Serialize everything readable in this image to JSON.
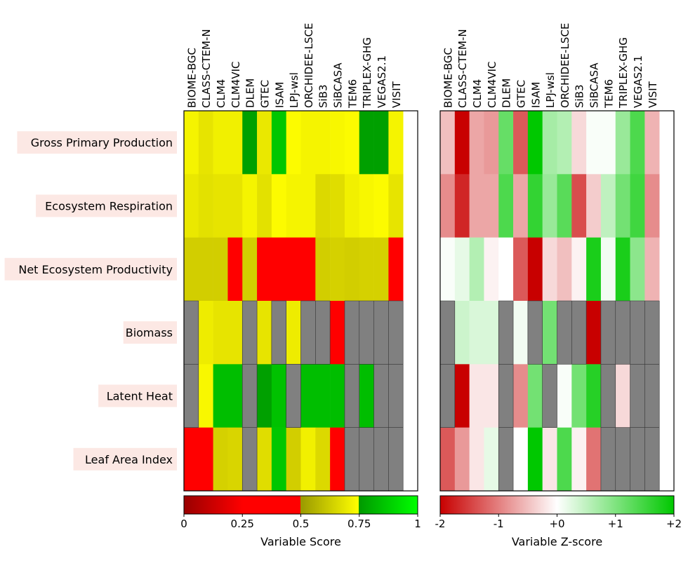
{
  "chart_data": [
    {
      "type": "heatmap",
      "title": "",
      "xlabel": "",
      "ylabel": "",
      "models": [
        "BIOME-BGC",
        "CLASS-CTEM-N",
        "CLM4",
        "CLM4VIC",
        "DLEM",
        "GTEC",
        "ISAM",
        "LPJ-wsl",
        "ORCHIDEE-LSCE",
        "SiB3",
        "SiBCASA",
        "TEM6",
        "TRIPLEX-GHG",
        "VEGAS2.1",
        "VISIT"
      ],
      "variables": [
        "Gross Primary Production",
        "Ecosystem Respiration",
        "Net Ecosystem Productivity",
        "Biomass",
        "Latent Heat",
        "Leaf Area Index"
      ],
      "values": [
        [
          0.72,
          0.68,
          0.71,
          0.71,
          0.75,
          0.69,
          0.85,
          0.74,
          0.72,
          0.72,
          0.73,
          0.74,
          0.75,
          0.75,
          0.72
        ],
        [
          0.69,
          0.67,
          0.68,
          0.68,
          0.72,
          0.67,
          0.74,
          0.72,
          0.72,
          0.65,
          0.66,
          0.71,
          0.73,
          0.74,
          0.68
        ],
        [
          0.62,
          0.62,
          0.62,
          0.45,
          0.62,
          0.45,
          0.45,
          0.45,
          0.45,
          0.62,
          0.63,
          0.62,
          0.63,
          0.63,
          0.45
        ],
        [
          null,
          0.7,
          0.68,
          0.68,
          null,
          0.68,
          null,
          0.7,
          null,
          null,
          0.45,
          null,
          null,
          null,
          null
        ],
        [
          null,
          0.73,
          0.83,
          0.83,
          null,
          0.75,
          0.84,
          null,
          0.83,
          0.83,
          0.83,
          null,
          0.83,
          null,
          null
        ],
        [
          0.45,
          0.45,
          0.63,
          0.64,
          null,
          0.66,
          0.85,
          0.62,
          0.71,
          0.65,
          0.45,
          null,
          null,
          null,
          null
        ]
      ],
      "colorbar": {
        "label": "Variable Score",
        "ticks": [
          "0",
          "0.25",
          "0.5",
          "0.75",
          "1"
        ],
        "range": [
          0,
          1
        ],
        "colors": [
          "#800000",
          "#FF0000",
          "#808000",
          "#FFFF00",
          "#008000",
          "#00FF00"
        ]
      },
      "missing_color": "#808080"
    },
    {
      "type": "heatmap",
      "title": "",
      "xlabel": "",
      "ylabel": "",
      "models": [
        "BIOME-BGC",
        "CLASS-CTEM-N",
        "CLM4",
        "CLM4VIC",
        "DLEM",
        "GTEC",
        "ISAM",
        "LPJ-wsl",
        "ORCHIDEE-LSCE",
        "SiB3",
        "SiBCASA",
        "TEM6",
        "TRIPLEX-GHG",
        "VEGAS2.1",
        "VISIT"
      ],
      "values": [
        [
          -0.5,
          -2.0,
          -0.7,
          -0.8,
          1.2,
          -1.3,
          2.0,
          0.7,
          0.6,
          -0.3,
          0.05,
          0.05,
          0.8,
          1.4,
          -0.6
        ],
        [
          -0.9,
          -1.7,
          -0.7,
          -0.7,
          1.4,
          -0.7,
          1.6,
          0.8,
          1.3,
          -1.4,
          -0.4,
          0.5,
          1.1,
          1.5,
          -0.9
        ],
        [
          0.05,
          0.2,
          0.6,
          -0.1,
          0.0,
          -1.3,
          -2.0,
          -0.3,
          -0.5,
          -0.1,
          1.8,
          0.1,
          1.8,
          0.9,
          -0.6
        ],
        [
          null,
          0.4,
          0.3,
          0.3,
          null,
          0.1,
          null,
          1.1,
          null,
          null,
          -2.0,
          null,
          null,
          null,
          null
        ],
        [
          null,
          -2.0,
          -0.2,
          -0.2,
          null,
          -0.9,
          1.1,
          null,
          0.05,
          1.1,
          1.7,
          null,
          -0.3,
          null,
          null
        ],
        [
          -1.3,
          -0.8,
          -0.2,
          0.2,
          null,
          0.0,
          2.0,
          -0.2,
          1.4,
          -0.1,
          -1.1,
          null,
          null,
          null,
          null
        ]
      ],
      "colorbar": {
        "label": "Variable Z-score",
        "ticks": [
          "-2",
          "-1",
          "+0",
          "+1",
          "+2"
        ],
        "range": [
          -2,
          2
        ],
        "colors": [
          "#C80000",
          "#FFFFFF",
          "#00C800"
        ]
      },
      "missing_color": "#808080"
    }
  ]
}
